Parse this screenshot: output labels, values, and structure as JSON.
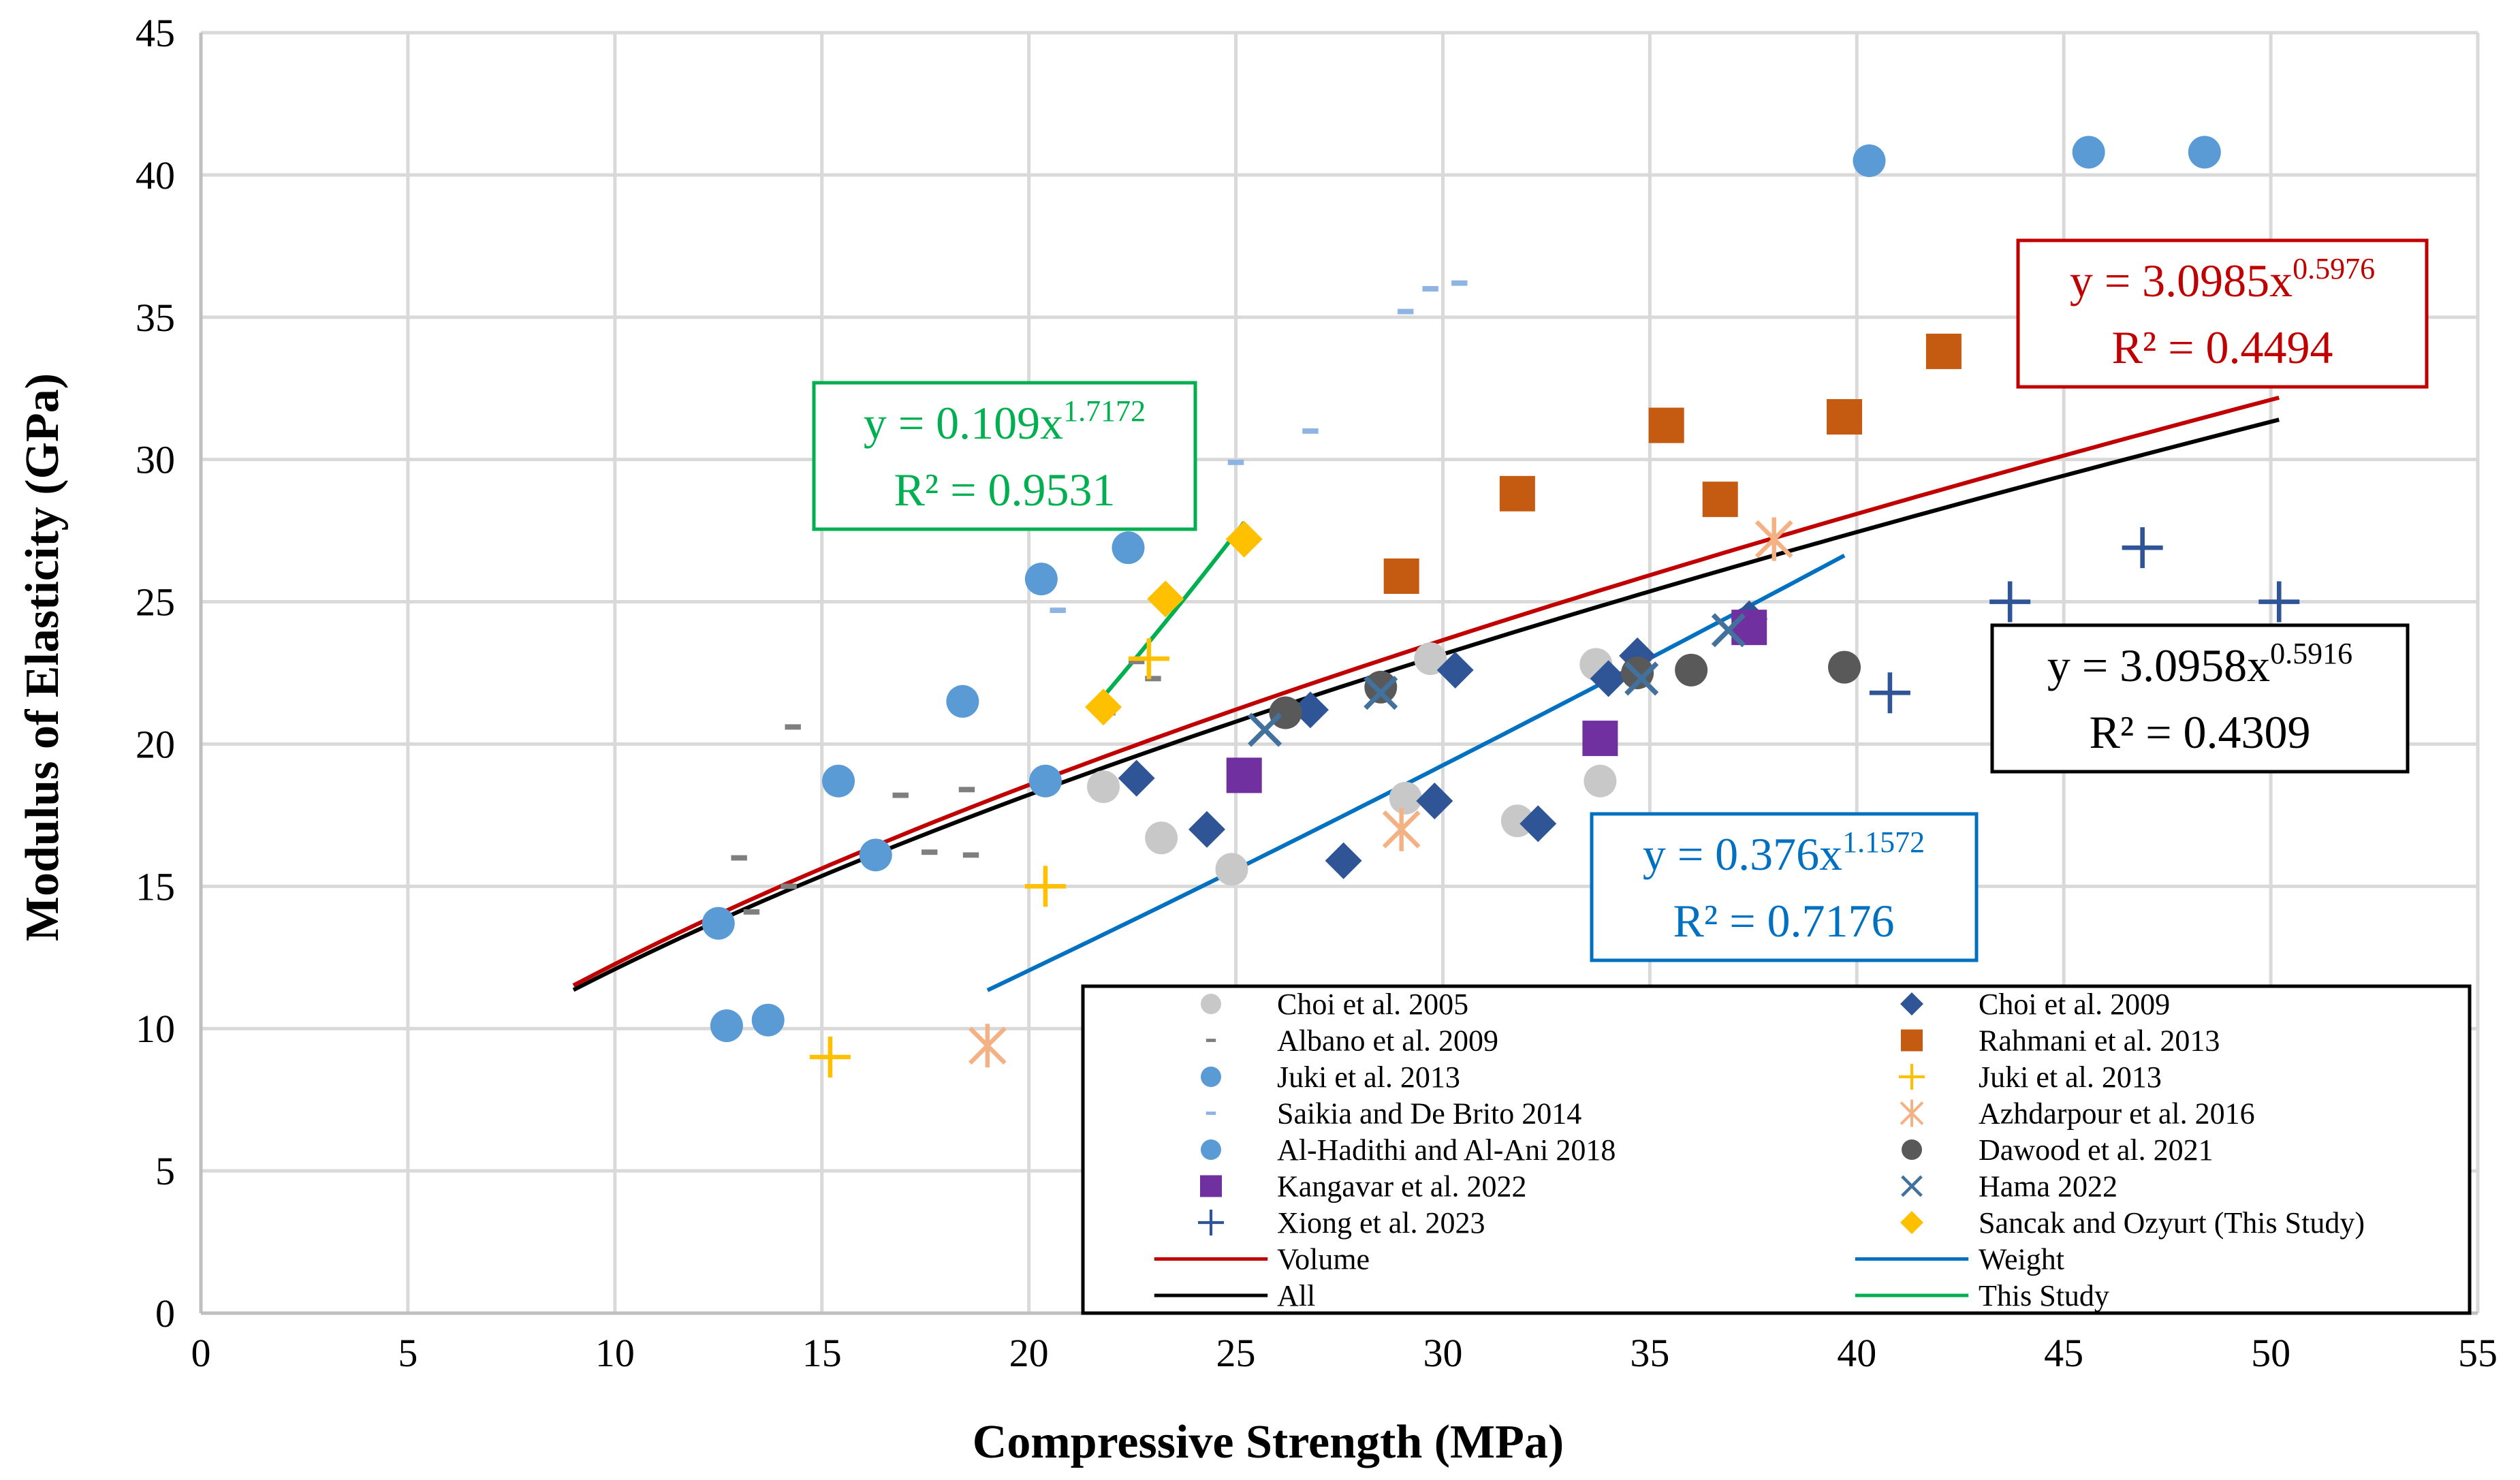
{
  "chart_data": {
    "type": "scatter",
    "title": "",
    "xlabel": "Compressive Strength (MPa)",
    "ylabel": "Modulus of Elasticity (GPa)",
    "xlim": [
      0,
      55
    ],
    "ylim": [
      0,
      45
    ],
    "xticks": [
      0,
      5,
      10,
      15,
      20,
      25,
      30,
      35,
      40,
      45,
      50,
      55
    ],
    "yticks": [
      0,
      5,
      10,
      15,
      20,
      25,
      30,
      35,
      40,
      45
    ],
    "grid": true,
    "legend_position": "bottom-right",
    "series": [
      {
        "name": "Choi et al. 2005",
        "marker": "circle",
        "color": "#c8c8c8",
        "points": [
          [
            21.8,
            18.5
          ],
          [
            23.2,
            16.7
          ],
          [
            24.9,
            15.6
          ],
          [
            29.1,
            18.1
          ],
          [
            29.7,
            23.0
          ],
          [
            31.8,
            17.3
          ],
          [
            33.7,
            22.8
          ],
          [
            33.8,
            18.7
          ]
        ]
      },
      {
        "name": "Choi et al. 2009",
        "marker": "diamond",
        "color": "#2f5597",
        "points": [
          [
            22.6,
            18.8
          ],
          [
            24.3,
            17.0
          ],
          [
            26.8,
            21.2
          ],
          [
            27.6,
            15.9
          ],
          [
            29.8,
            18.0
          ],
          [
            30.3,
            22.6
          ],
          [
            32.3,
            17.2
          ],
          [
            34.0,
            22.3
          ],
          [
            34.7,
            23.1
          ],
          [
            37.4,
            24.4
          ]
        ]
      },
      {
        "name": "Albano et al. 2009",
        "marker": "dash",
        "color": "#7f7f7f",
        "points": [
          [
            13.0,
            16.0
          ],
          [
            13.3,
            14.1
          ],
          [
            14.2,
            15.0
          ],
          [
            14.3,
            20.6
          ],
          [
            16.9,
            18.2
          ],
          [
            17.6,
            16.2
          ],
          [
            18.5,
            18.4
          ],
          [
            18.6,
            16.1
          ],
          [
            21.9,
            21.1
          ],
          [
            22.6,
            22.9
          ],
          [
            23.0,
            22.3
          ]
        ]
      },
      {
        "name": "Rahmani et al. 2013",
        "marker": "square",
        "color": "#c55a11",
        "points": [
          [
            29.0,
            25.9
          ],
          [
            31.8,
            28.8
          ],
          [
            35.4,
            31.2
          ],
          [
            36.7,
            28.6
          ],
          [
            39.7,
            31.5
          ],
          [
            42.1,
            33.8
          ]
        ]
      },
      {
        "name": "Juki et al. 2013",
        "marker": "circle",
        "color": "#5b9bd5",
        "points": [
          [
            12.5,
            13.7
          ],
          [
            15.4,
            18.7
          ],
          [
            16.3,
            16.1
          ],
          [
            18.4,
            21.5
          ],
          [
            20.3,
            25.8
          ],
          [
            20.4,
            18.7
          ],
          [
            22.4,
            26.9
          ],
          [
            40.3,
            40.5
          ],
          [
            45.6,
            40.8
          ],
          [
            48.4,
            40.8
          ]
        ]
      },
      {
        "name": "Juki et al. 2013",
        "marker": "plus",
        "color": "#ffc000",
        "points": [
          [
            15.2,
            9.0
          ],
          [
            20.4,
            15.0
          ],
          [
            22.9,
            23.0
          ]
        ]
      },
      {
        "name": "Saikia and De Brito 2014",
        "marker": "dash",
        "color": "#8eb4e3",
        "points": [
          [
            20.7,
            24.7
          ],
          [
            25.0,
            29.9
          ],
          [
            26.8,
            31.0
          ],
          [
            29.1,
            35.2
          ],
          [
            29.7,
            36.0
          ],
          [
            30.4,
            36.2
          ]
        ]
      },
      {
        "name": "Azhdarpour et al. 2016",
        "marker": "star",
        "color": "#f4b183",
        "points": [
          [
            19.0,
            9.4
          ],
          [
            29.0,
            17.0
          ],
          [
            38.0,
            27.2
          ]
        ]
      },
      {
        "name": "Al-Hadithi and Al-Ani 2018",
        "marker": "circle",
        "color": "#5b9bd5",
        "points": [
          [
            12.7,
            10.1
          ],
          [
            13.7,
            10.3
          ]
        ]
      },
      {
        "name": "Dawood et al. 2021",
        "marker": "circle",
        "color": "#595959",
        "points": [
          [
            26.2,
            21.1
          ],
          [
            28.5,
            22.0
          ],
          [
            34.7,
            22.5
          ],
          [
            36.0,
            22.6
          ],
          [
            39.7,
            22.7
          ]
        ]
      },
      {
        "name": "Kangavar et al. 2022",
        "marker": "square",
        "color": "#7030a0",
        "points": [
          [
            25.2,
            18.9
          ],
          [
            33.8,
            20.2
          ],
          [
            37.4,
            24.1
          ]
        ]
      },
      {
        "name": "Hama 2022",
        "marker": "x",
        "color": "#41719c",
        "points": [
          [
            25.7,
            20.5
          ],
          [
            28.5,
            21.8
          ],
          [
            34.8,
            22.3
          ],
          [
            36.9,
            24.0
          ]
        ]
      },
      {
        "name": "Xiong et al. 2023",
        "marker": "plus",
        "color": "#2f5597",
        "points": [
          [
            40.8,
            21.8
          ],
          [
            43.7,
            25.0
          ],
          [
            46.9,
            26.9
          ],
          [
            50.2,
            25.0
          ]
        ]
      },
      {
        "name": "Sancak and Ozyurt (This Study)",
        "marker": "diamond",
        "color": "#ffc000",
        "points": [
          [
            21.8,
            21.3
          ],
          [
            23.3,
            25.1
          ],
          [
            25.2,
            27.2
          ]
        ]
      }
    ],
    "trendlines": [
      {
        "name": "Volume",
        "color": "#c00000",
        "a": 3.0985,
        "b": 0.5976,
        "x_range": [
          9.0,
          50.2
        ]
      },
      {
        "name": "Weight",
        "color": "#0070c0",
        "a": 0.376,
        "b": 1.1572,
        "x_range": [
          19.0,
          39.7
        ]
      },
      {
        "name": "All",
        "color": "#000000",
        "a": 3.0958,
        "b": 0.5916,
        "x_range": [
          9.0,
          50.2
        ]
      },
      {
        "name": "This Study",
        "color": "#00b050",
        "a": 0.109,
        "b": 1.7172,
        "x_range": [
          21.8,
          25.2
        ]
      }
    ],
    "annotations": [
      {
        "id": "volume",
        "color": "#c00000",
        "eq_main": "y = 3.0985x",
        "eq_exp": "0.5976",
        "r2": "R² = 0.4494"
      },
      {
        "id": "all",
        "color": "#000000",
        "eq_main": "y = 3.0958x",
        "eq_exp": "0.5916",
        "r2": "R² = 0.4309"
      },
      {
        "id": "weight",
        "color": "#0070c0",
        "eq_main": "y = 0.376x",
        "eq_exp": "1.1572",
        "r2": "R² = 0.7176"
      },
      {
        "id": "study",
        "color": "#00b050",
        "eq_main": "y = 0.109x",
        "eq_exp": "1.7172",
        "r2": "R² = 0.9531"
      }
    ],
    "legend": [
      {
        "label": "Choi et al. 2005",
        "marker": "circle",
        "color": "#c8c8c8"
      },
      {
        "label": "Choi et al. 2009",
        "marker": "diamond",
        "color": "#2f5597"
      },
      {
        "label": "Albano et al. 2009",
        "marker": "dash",
        "color": "#7f7f7f"
      },
      {
        "label": "Rahmani et al. 2013",
        "marker": "square",
        "color": "#c55a11"
      },
      {
        "label": "Juki et al. 2013",
        "marker": "circle",
        "color": "#5b9bd5"
      },
      {
        "label": "Juki et al. 2013",
        "marker": "plus",
        "color": "#ffc000"
      },
      {
        "label": "Saikia and De Brito 2014",
        "marker": "dash",
        "color": "#8eb4e3"
      },
      {
        "label": "Azhdarpour et al. 2016",
        "marker": "star",
        "color": "#f4b183"
      },
      {
        "label": "Al-Hadithi and Al-Ani 2018",
        "marker": "circle",
        "color": "#5b9bd5"
      },
      {
        "label": "Dawood et al. 2021",
        "marker": "circle",
        "color": "#595959"
      },
      {
        "label": "Kangavar et al. 2022",
        "marker": "square",
        "color": "#7030a0"
      },
      {
        "label": "Hama 2022",
        "marker": "x",
        "color": "#41719c"
      },
      {
        "label": "Xiong et al. 2023",
        "marker": "plus",
        "color": "#2f5597"
      },
      {
        "label": "Sancak and Ozyurt (This Study)",
        "marker": "diamond",
        "color": "#ffc000"
      },
      {
        "label": "Volume",
        "marker": "line",
        "color": "#c00000"
      },
      {
        "label": "Weight",
        "marker": "line",
        "color": "#0070c0"
      },
      {
        "label": "All",
        "marker": "line",
        "color": "#000000"
      },
      {
        "label": "This Study",
        "marker": "line",
        "color": "#00b050"
      }
    ]
  }
}
